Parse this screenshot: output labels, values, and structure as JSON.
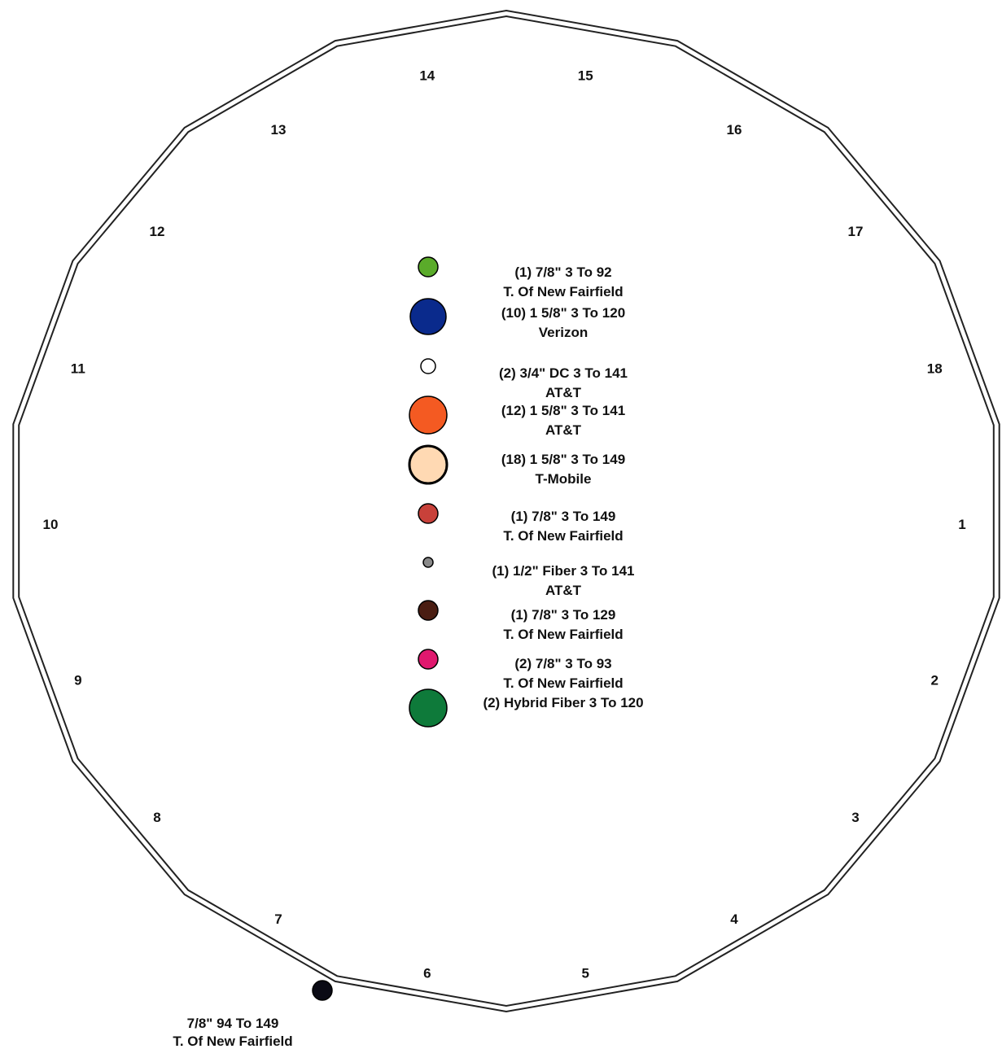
{
  "face_numbers": [
    "1",
    "2",
    "3",
    "4",
    "5",
    "6",
    "7",
    "8",
    "9",
    "10",
    "11",
    "12",
    "13",
    "14",
    "15",
    "16",
    "17",
    "18"
  ],
  "legend": [
    {
      "color": "#5aab2a",
      "line1": "(1) 7/8\"  3 To 92",
      "line2": "T. Of New Fairfield"
    },
    {
      "color": "#0a2a8c",
      "line1": "(10) 1 5/8\"  3 To 120",
      "line2": "Verizon"
    },
    {
      "color": "#ffffff",
      "line1": "(2) 3/4\" DC 3 To 141",
      "line2": "AT&T"
    },
    {
      "color": "#f45a22",
      "line1": "(12) 1 5/8\"  3 To 141",
      "line2": "AT&T"
    },
    {
      "color": "#ffd9b3",
      "line1": "(18) 1 5/8\"  3 To 149",
      "line2": "T-Mobile"
    },
    {
      "color": "#c8413a",
      "line1": "(1) 7/8\"  3 To 149",
      "line2": "T. Of New Fairfield"
    },
    {
      "color": "#8a8a8a",
      "line1": "(1) 1/2\" Fiber 3 To 141",
      "line2": "AT&T"
    },
    {
      "color": "#4a1d12",
      "line1": "(1) 7/8\"  3 To 129",
      "line2": "T. Of New Fairfield"
    },
    {
      "color": "#e0186e",
      "line1": "(2) 7/8\"  3 To 93",
      "line2": "T. Of New Fairfield"
    },
    {
      "color": "#0e7a3a",
      "line1": "(2) Hybrid Fiber 3 To 120",
      "line2": ""
    }
  ],
  "external_line": {
    "color": "#0a0a14",
    "line1": "7/8\"  94 To 149",
    "line2": "T. Of New Fairfield"
  }
}
